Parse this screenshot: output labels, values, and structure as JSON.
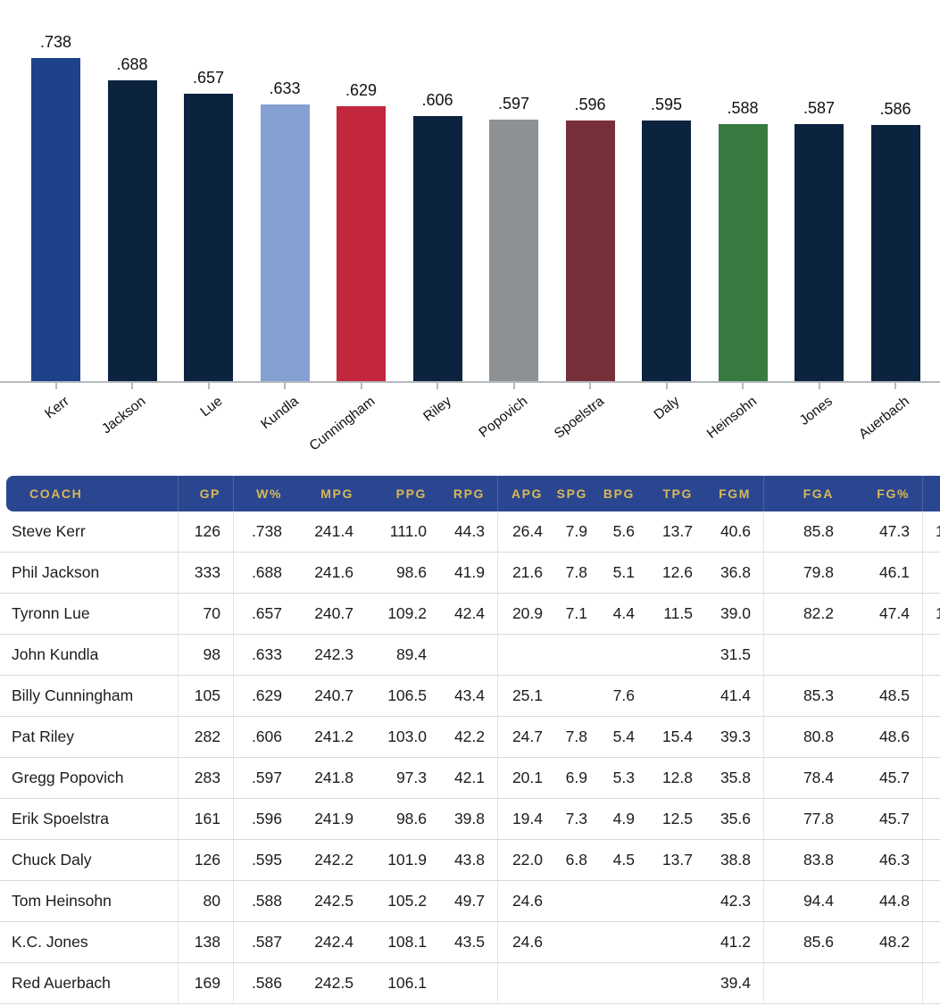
{
  "chart_data": {
    "type": "bar",
    "title": "",
    "xlabel": "",
    "ylabel": "",
    "ylim": [
      0,
      0.87
    ],
    "grid": false,
    "legend": false,
    "categories": [
      "Kerr",
      "Jackson",
      "Lue",
      "Kundla",
      "Cunningham",
      "Riley",
      "Popovich",
      "Spoelstra",
      "Daly",
      "Heinsohn",
      "Jones",
      "Auerbach"
    ],
    "values": [
      0.738,
      0.688,
      0.657,
      0.633,
      0.629,
      0.606,
      0.597,
      0.596,
      0.595,
      0.588,
      0.587,
      0.586
    ],
    "value_labels": [
      ".738",
      ".688",
      ".657",
      ".633",
      ".629",
      ".606",
      ".597",
      ".596",
      ".595",
      ".588",
      ".587",
      ".586"
    ],
    "bar_colors": [
      "#1D428A",
      "#0C2340",
      "#0C2340",
      "#85A1D4",
      "#C3273D",
      "#0C2340",
      "#8E9194",
      "#77303A",
      "#0C2340",
      "#397A40",
      "#0C2340",
      "#0C2340"
    ]
  },
  "table": {
    "columns": [
      "COACH",
      "GP",
      "W%",
      "MPG",
      "PPG",
      "RPG",
      "APG",
      "SPG",
      "BPG",
      "TPG",
      "FGM",
      "FGA",
      "FG%",
      ""
    ],
    "rows": [
      [
        "Steve Kerr",
        "126",
        ".738",
        "241.4",
        "111.0",
        "44.3",
        "26.4",
        "7.9",
        "5.6",
        "13.7",
        "40.6",
        "85.8",
        "47.3",
        "1"
      ],
      [
        "Phil Jackson",
        "333",
        ".688",
        "241.6",
        "98.6",
        "41.9",
        "21.6",
        "7.8",
        "5.1",
        "12.6",
        "36.8",
        "79.8",
        "46.1",
        ""
      ],
      [
        "Tyronn Lue",
        "70",
        ".657",
        "240.7",
        "109.2",
        "42.4",
        "20.9",
        "7.1",
        "4.4",
        "11.5",
        "39.0",
        "82.2",
        "47.4",
        "1"
      ],
      [
        "John Kundla",
        "98",
        ".633",
        "242.3",
        "89.4",
        "",
        "",
        "",
        "",
        "",
        "31.5",
        "",
        "",
        ""
      ],
      [
        "Billy Cunningham",
        "105",
        ".629",
        "240.7",
        "106.5",
        "43.4",
        "25.1",
        "",
        "7.6",
        "",
        "41.4",
        "85.3",
        "48.5",
        ""
      ],
      [
        "Pat Riley",
        "282",
        ".606",
        "241.2",
        "103.0",
        "42.2",
        "24.7",
        "7.8",
        "5.4",
        "15.4",
        "39.3",
        "80.8",
        "48.6",
        ""
      ],
      [
        "Gregg Popovich",
        "283",
        ".597",
        "241.8",
        "97.3",
        "42.1",
        "20.1",
        "6.9",
        "5.3",
        "12.8",
        "35.8",
        "78.4",
        "45.7",
        ""
      ],
      [
        "Erik Spoelstra",
        "161",
        ".596",
        "241.9",
        "98.6",
        "39.8",
        "19.4",
        "7.3",
        "4.9",
        "12.5",
        "35.6",
        "77.8",
        "45.7",
        ""
      ],
      [
        "Chuck Daly",
        "126",
        ".595",
        "242.2",
        "101.9",
        "43.8",
        "22.0",
        "6.8",
        "4.5",
        "13.7",
        "38.8",
        "83.8",
        "46.3",
        ""
      ],
      [
        "Tom Heinsohn",
        "80",
        ".588",
        "242.5",
        "105.2",
        "49.7",
        "24.6",
        "",
        "",
        "",
        "42.3",
        "94.4",
        "44.8",
        ""
      ],
      [
        "K.C. Jones",
        "138",
        ".587",
        "242.4",
        "108.1",
        "43.5",
        "24.6",
        "",
        "",
        "",
        "41.2",
        "85.6",
        "48.2",
        ""
      ],
      [
        "Red Auerbach",
        "169",
        ".586",
        "242.5",
        "106.1",
        "",
        "",
        "",
        "",
        "",
        "39.4",
        "",
        "",
        ""
      ]
    ]
  },
  "colors": {
    "header_bg": "#2B4690",
    "header_text": "#D8B957",
    "header_divider": "#51609F",
    "row_divider": "#D9D9D9",
    "body_divider": "#E3E3E3",
    "axis": "#B5BABE",
    "text": "#1C1C1C",
    "background": "#FFFFFF"
  }
}
